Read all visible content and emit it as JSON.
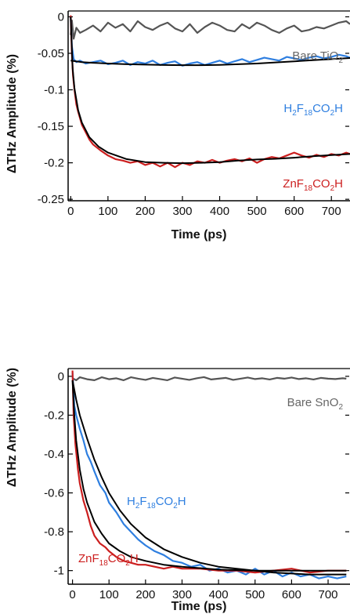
{
  "chart_data": [
    {
      "type": "line",
      "xlabel": "Time (ps)",
      "ylabel": "ΔTHz Amplitude (%)",
      "xlim": [
        -7,
        750
      ],
      "ylim": [
        -0.252,
        0.008
      ],
      "xticks": [
        "0",
        "100",
        "200",
        "300",
        "400",
        "500",
        "600",
        "700"
      ],
      "yticks": [
        "0",
        "-0.05",
        "-0.1",
        "-0.15",
        "-0.2",
        "-0.25"
      ],
      "grid": false,
      "series": [
        {
          "base": "Bare TiO",
          "sub": "2",
          "color": "#555555",
          "x": [
            0,
            3,
            8,
            15,
            25,
            40,
            60,
            80,
            100,
            120,
            140,
            160,
            180,
            200,
            220,
            240,
            260,
            280,
            300,
            320,
            340,
            360,
            380,
            400,
            420,
            440,
            460,
            480,
            500,
            520,
            540,
            560,
            580,
            600,
            620,
            640,
            660,
            680,
            700,
            720,
            740,
            750
          ],
          "y": [
            -0.025,
            -0.005,
            -0.03,
            -0.015,
            -0.022,
            -0.018,
            -0.012,
            -0.02,
            -0.008,
            -0.015,
            -0.01,
            -0.02,
            -0.006,
            -0.014,
            -0.018,
            -0.012,
            -0.008,
            -0.016,
            -0.02,
            -0.01,
            -0.022,
            -0.014,
            -0.008,
            -0.012,
            -0.018,
            -0.02,
            -0.01,
            -0.016,
            -0.008,
            -0.012,
            -0.018,
            -0.022,
            -0.016,
            -0.012,
            -0.02,
            -0.018,
            -0.014,
            -0.016,
            -0.012,
            -0.008,
            -0.006,
            -0.01
          ]
        },
        {
          "base": "H",
          "parts": [
            [
              "H",
              ""
            ],
            [
              "2",
              "sub"
            ],
            [
              "F",
              ""
            ],
            [
              "18",
              "sub"
            ],
            [
              "CO",
              ""
            ],
            [
              "2",
              "sub"
            ],
            [
              "H",
              ""
            ]
          ],
          "color": "#2f7fe0",
          "x": [
            0,
            3,
            8,
            15,
            25,
            40,
            60,
            80,
            100,
            120,
            140,
            160,
            180,
            200,
            220,
            240,
            260,
            280,
            300,
            320,
            340,
            360,
            380,
            400,
            420,
            440,
            460,
            480,
            500,
            520,
            540,
            560,
            580,
            600,
            620,
            640,
            660,
            680,
            700,
            720,
            740,
            750
          ],
          "y": [
            0.0,
            -0.04,
            -0.058,
            -0.062,
            -0.06,
            -0.064,
            -0.062,
            -0.06,
            -0.065,
            -0.063,
            -0.06,
            -0.066,
            -0.062,
            -0.064,
            -0.06,
            -0.066,
            -0.063,
            -0.061,
            -0.067,
            -0.064,
            -0.062,
            -0.066,
            -0.063,
            -0.06,
            -0.064,
            -0.061,
            -0.058,
            -0.062,
            -0.059,
            -0.056,
            -0.058,
            -0.06,
            -0.055,
            -0.057,
            -0.059,
            -0.056,
            -0.054,
            -0.057,
            -0.055,
            -0.052,
            -0.054,
            -0.056
          ]
        },
        {
          "base": "Zn",
          "parts": [
            [
              "ZnF",
              ""
            ],
            [
              "18",
              "sub"
            ],
            [
              "CO",
              ""
            ],
            [
              "2",
              "sub"
            ],
            [
              "H",
              ""
            ]
          ],
          "color": "#cc1f1f",
          "x": [
            0,
            3,
            6,
            10,
            15,
            20,
            30,
            40,
            50,
            60,
            80,
            100,
            120,
            140,
            160,
            180,
            200,
            220,
            240,
            260,
            280,
            300,
            320,
            340,
            360,
            380,
            400,
            420,
            440,
            460,
            480,
            500,
            520,
            540,
            560,
            580,
            600,
            620,
            640,
            660,
            680,
            700,
            720,
            740,
            750
          ],
          "y": [
            0.002,
            -0.05,
            -0.08,
            -0.1,
            -0.12,
            -0.13,
            -0.148,
            -0.158,
            -0.168,
            -0.175,
            -0.183,
            -0.19,
            -0.195,
            -0.197,
            -0.2,
            -0.198,
            -0.203,
            -0.2,
            -0.205,
            -0.2,
            -0.206,
            -0.2,
            -0.203,
            -0.198,
            -0.2,
            -0.196,
            -0.2,
            -0.197,
            -0.195,
            -0.198,
            -0.194,
            -0.2,
            -0.195,
            -0.192,
            -0.194,
            -0.19,
            -0.186,
            -0.19,
            -0.193,
            -0.189,
            -0.192,
            -0.188,
            -0.19,
            -0.186,
            -0.188
          ]
        }
      ],
      "fits": [
        {
          "color": "#000000",
          "x": [
            0,
            30,
            60,
            100,
            150,
            200,
            250,
            300,
            350,
            400,
            450,
            500,
            550,
            600,
            650,
            700,
            750
          ],
          "y": [
            -0.06,
            -0.062,
            -0.063,
            -0.064,
            -0.065,
            -0.0655,
            -0.066,
            -0.0662,
            -0.0662,
            -0.0658,
            -0.065,
            -0.064,
            -0.0625,
            -0.061,
            -0.0595,
            -0.058,
            -0.0565
          ]
        },
        {
          "color": "#000000",
          "x": [
            0,
            5,
            10,
            20,
            30,
            50,
            75,
            100,
            150,
            200,
            250,
            300,
            350,
            400,
            450,
            500,
            550,
            600,
            650,
            700,
            750
          ],
          "y": [
            0.0,
            -0.07,
            -0.098,
            -0.128,
            -0.145,
            -0.165,
            -0.178,
            -0.186,
            -0.195,
            -0.199,
            -0.2,
            -0.2005,
            -0.2,
            -0.199,
            -0.197,
            -0.1955,
            -0.1945,
            -0.193,
            -0.191,
            -0.1895,
            -0.188
          ]
        }
      ]
    },
    {
      "type": "line",
      "xlabel": "Time (ps)",
      "ylabel": "ΔTHz Amplitude (%)",
      "xlim": [
        -12,
        760
      ],
      "ylim": [
        -1.07,
        0.04
      ],
      "xticks": [
        "0",
        "100",
        "200",
        "300",
        "400",
        "500",
        "600",
        "700"
      ],
      "yticks": [
        "0",
        "-0.2",
        "-0.4",
        "-0.6",
        "-0.8",
        "-1"
      ],
      "grid": false,
      "series": [
        {
          "base": "Bare SnO",
          "sub": "2",
          "color": "#555555",
          "x": [
            0,
            10,
            20,
            40,
            60,
            80,
            100,
            120,
            140,
            160,
            180,
            200,
            220,
            240,
            260,
            280,
            300,
            320,
            340,
            360,
            380,
            400,
            420,
            440,
            460,
            480,
            500,
            520,
            540,
            560,
            580,
            600,
            620,
            640,
            660,
            680,
            700,
            720,
            740,
            750
          ],
          "y": [
            -0.01,
            -0.02,
            -0.005,
            -0.015,
            -0.02,
            -0.005,
            -0.015,
            -0.01,
            -0.02,
            -0.005,
            -0.012,
            -0.018,
            -0.008,
            -0.014,
            -0.02,
            -0.006,
            -0.012,
            -0.018,
            -0.01,
            -0.004,
            -0.016,
            -0.012,
            -0.008,
            -0.018,
            -0.012,
            -0.006,
            -0.014,
            -0.01,
            -0.016,
            -0.008,
            -0.012,
            -0.006,
            -0.014,
            -0.01,
            -0.016,
            -0.008,
            -0.012,
            -0.014,
            -0.01,
            -0.012
          ]
        },
        {
          "base": "H",
          "parts": [
            [
              "H",
              ""
            ],
            [
              "2",
              "sub"
            ],
            [
              "F",
              ""
            ],
            [
              "18",
              "sub"
            ],
            [
              "CO",
              ""
            ],
            [
              "2",
              "sub"
            ],
            [
              "H",
              ""
            ]
          ],
          "color": "#2f7fe0",
          "x": [
            0,
            5,
            10,
            20,
            30,
            40,
            50,
            60,
            75,
            90,
            100,
            120,
            140,
            160,
            180,
            200,
            225,
            250,
            275,
            300,
            325,
            350,
            375,
            400,
            425,
            450,
            475,
            500,
            525,
            550,
            575,
            600,
            625,
            650,
            675,
            700,
            725,
            750
          ],
          "y": [
            0.02,
            -0.15,
            -0.2,
            -0.27,
            -0.33,
            -0.4,
            -0.44,
            -0.49,
            -0.56,
            -0.6,
            -0.65,
            -0.7,
            -0.76,
            -0.8,
            -0.84,
            -0.87,
            -0.9,
            -0.92,
            -0.95,
            -0.96,
            -0.98,
            -0.97,
            -1.0,
            -0.99,
            -1.01,
            -1.0,
            -1.02,
            -0.99,
            -1.02,
            -1.0,
            -1.03,
            -1.01,
            -1.03,
            -1.02,
            -1.04,
            -1.03,
            -1.04,
            -1.03
          ]
        },
        {
          "base": "Zn",
          "parts": [
            [
              "ZnF",
              ""
            ],
            [
              "18",
              "sub"
            ],
            [
              "CO",
              ""
            ],
            [
              "2",
              "sub"
            ],
            [
              "H",
              ""
            ]
          ],
          "color": "#cc1f1f",
          "x": [
            0,
            3,
            8,
            15,
            20,
            30,
            40,
            50,
            60,
            75,
            90,
            100,
            120,
            140,
            160,
            180,
            200,
            225,
            250,
            275,
            300,
            350,
            400,
            450,
            500,
            550,
            600,
            650,
            700,
            750
          ],
          "y": [
            0.03,
            -0.2,
            -0.35,
            -0.48,
            -0.55,
            -0.64,
            -0.7,
            -0.77,
            -0.82,
            -0.86,
            -0.88,
            -0.9,
            -0.93,
            -0.95,
            -0.96,
            -0.97,
            -0.97,
            -0.98,
            -0.99,
            -0.98,
            -0.99,
            -0.99,
            -1.0,
            -1.0,
            -1.01,
            -1.0,
            -0.99,
            -1.01,
            -1.0,
            -1.0
          ]
        }
      ],
      "fits": [
        {
          "color": "#000000",
          "x": [
            0,
            10,
            20,
            40,
            60,
            80,
            100,
            130,
            160,
            200,
            250,
            300,
            350,
            400,
            450,
            500,
            550,
            600,
            650,
            700,
            750
          ],
          "y": [
            -0.02,
            -0.12,
            -0.2,
            -0.32,
            -0.43,
            -0.52,
            -0.6,
            -0.69,
            -0.76,
            -0.83,
            -0.89,
            -0.93,
            -0.96,
            -0.98,
            -0.99,
            -1.0,
            -1.01,
            -1.015,
            -1.02,
            -1.02,
            -1.02
          ]
        },
        {
          "color": "#000000",
          "x": [
            0,
            5,
            10,
            20,
            30,
            40,
            60,
            80,
            100,
            130,
            160,
            200,
            250,
            300,
            400,
            500,
            600,
            700,
            750
          ],
          "y": [
            -0.02,
            -0.2,
            -0.33,
            -0.48,
            -0.58,
            -0.65,
            -0.75,
            -0.81,
            -0.86,
            -0.9,
            -0.93,
            -0.95,
            -0.97,
            -0.98,
            -0.995,
            -1.0,
            -1.0,
            -1.0,
            -1.0
          ]
        }
      ]
    }
  ]
}
